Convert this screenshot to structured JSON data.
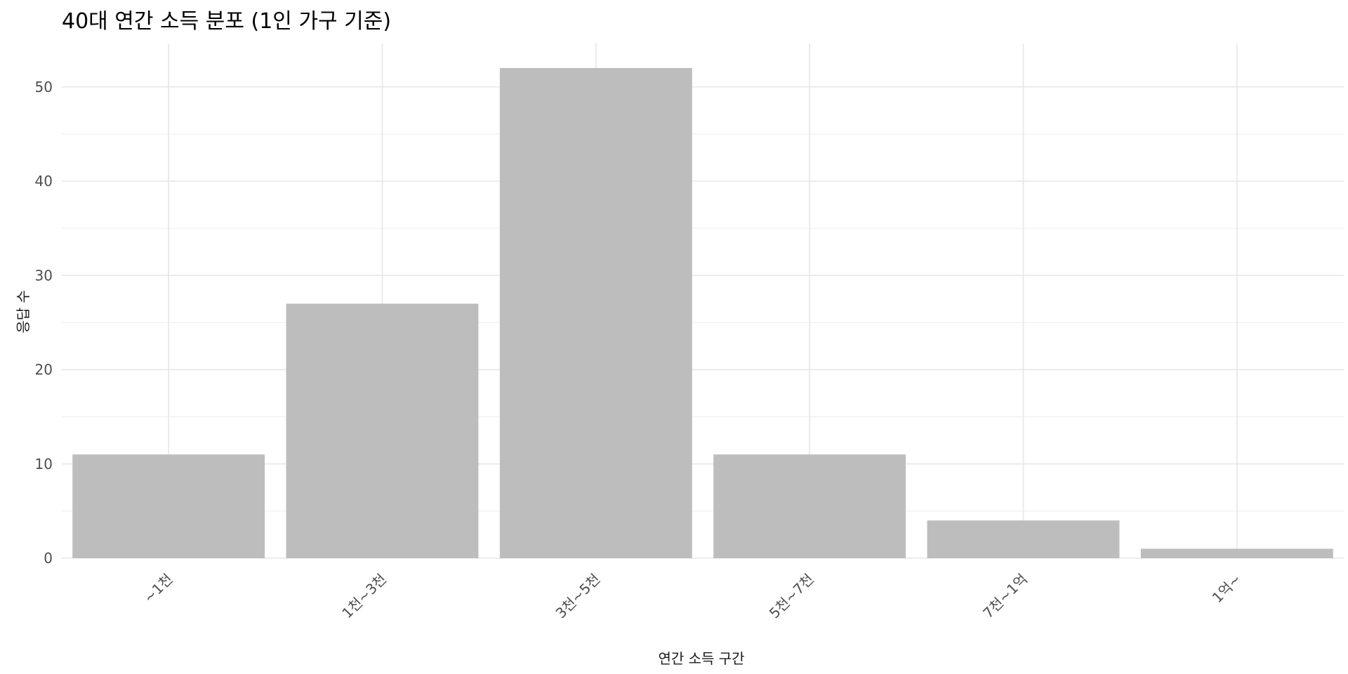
{
  "chart_data": {
    "type": "bar",
    "title": "40대 연간 소득 분포 (1인 가구 기준)",
    "xlabel": "연간 소득 구간",
    "ylabel": "응답 수",
    "categories": [
      "~1천",
      "1천~3천",
      "3천~5천",
      "5천~7천",
      "7천~1억",
      "1억~"
    ],
    "values": [
      11,
      27,
      52,
      11,
      4,
      1
    ],
    "ylim": [
      0,
      54.6
    ],
    "yticks": [
      "0",
      "10",
      "20",
      "30",
      "40",
      "50"
    ],
    "grid": true,
    "legend": "none",
    "bar_color": "#bdbdbd",
    "grid_color": "#e6e6e6"
  }
}
